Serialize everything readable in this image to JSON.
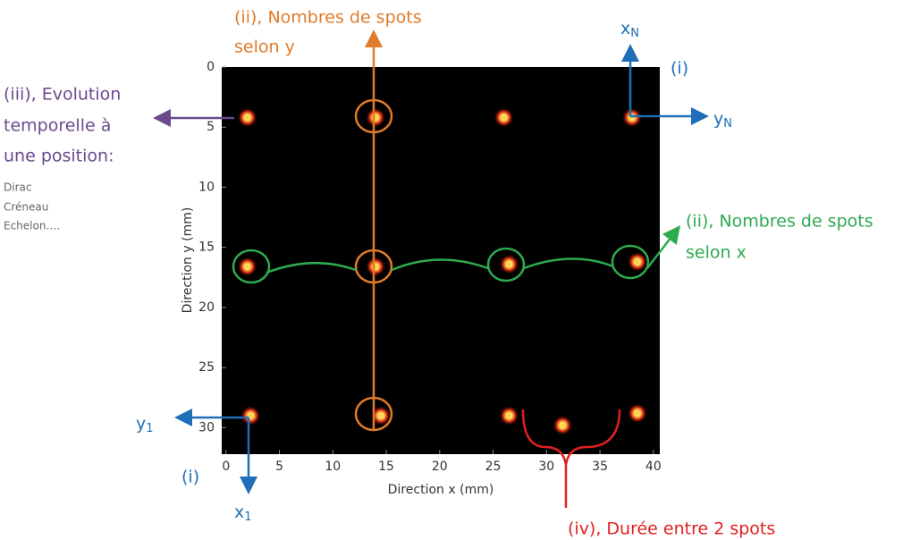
{
  "chart_data": {
    "type": "scatter",
    "xlabel": "Direction x (mm)",
    "ylabel": "Direction y (mm)",
    "xlim": [
      -0.4,
      40.6
    ],
    "ylim": [
      0,
      32.2
    ],
    "xticks": [
      0,
      5,
      10,
      15,
      20,
      25,
      30,
      35,
      40
    ],
    "yticks": [
      0,
      5,
      10,
      15,
      20,
      25,
      30
    ],
    "x": [
      2,
      14,
      26,
      38,
      2,
      14,
      26.5,
      38.5,
      2.3,
      14.5,
      26.5,
      38.5,
      31.5
    ],
    "values": [
      4.2,
      4.2,
      4.2,
      4.2,
      16.6,
      16.6,
      16.4,
      16.2,
      29,
      29,
      29,
      28.8,
      29.8
    ],
    "color": "#ffd040"
  },
  "annotations": {
    "spots_y": [
      "(ii), Nombres de spots",
      "selon y"
    ],
    "spots_x": [
      "(ii), Nombres de spots",
      "selon x"
    ],
    "evolution": [
      "(iii), Evolution",
      "temporelle à",
      "une position:"
    ],
    "examples": [
      "Dirac",
      "Créneau",
      "Echelon…."
    ],
    "axis_xN": {
      "main": "x",
      "sub": "N"
    },
    "axis_yN": {
      "main": "y",
      "sub": "N"
    },
    "axis_y1": {
      "main": "y",
      "sub": "1"
    },
    "axis_x1": {
      "main": "x",
      "sub": "1"
    },
    "marker_top": "(i)",
    "marker_bottom": "(i)",
    "duration": "(iv), Durée entre 2 spots"
  }
}
